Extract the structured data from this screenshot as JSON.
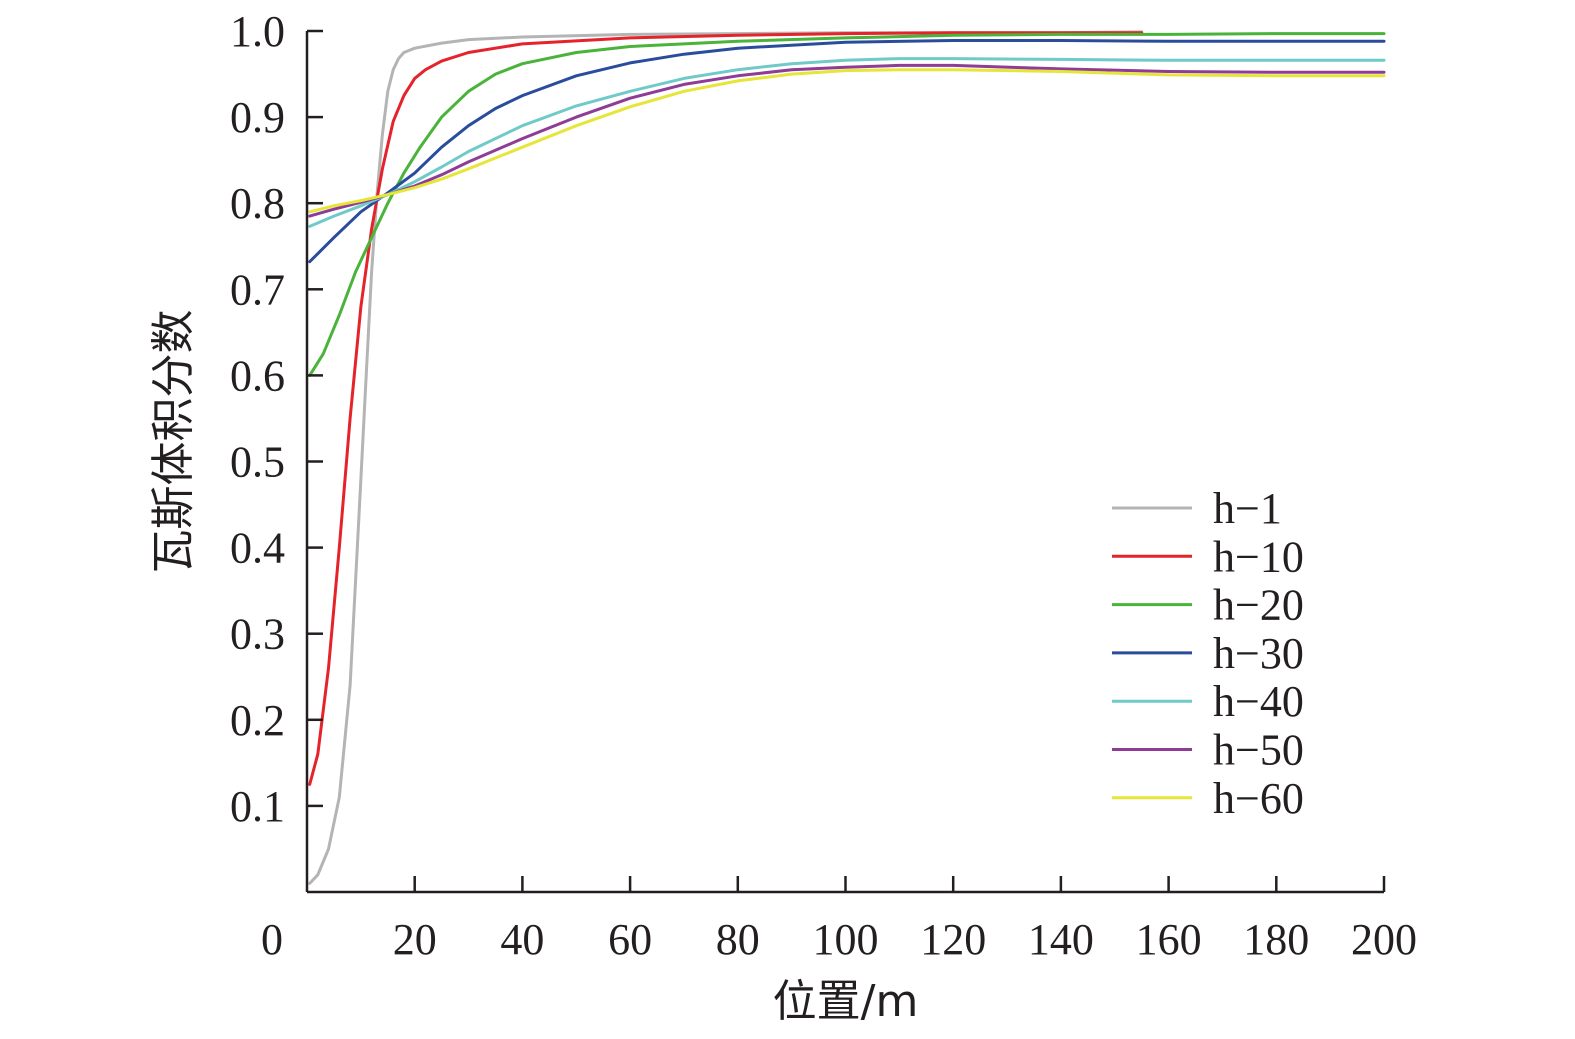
{
  "chart_data": {
    "type": "line",
    "title": "",
    "xlabel": "位置/m",
    "ylabel": "瓦斯体积分数",
    "xlim": [
      0,
      200
    ],
    "ylim": [
      0,
      1.0
    ],
    "x_ticks": [
      0,
      20,
      40,
      60,
      80,
      100,
      120,
      140,
      160,
      180,
      200
    ],
    "x_tick_labels": [
      "0",
      "20",
      "40",
      "60",
      "80",
      "100",
      "120",
      "140",
      "160",
      "180",
      "200"
    ],
    "y_ticks": [
      0.1,
      0.2,
      0.3,
      0.4,
      0.5,
      0.6,
      0.7,
      0.8,
      0.9,
      1.0
    ],
    "y_tick_labels": [
      "0.1",
      "0.2",
      "0.3",
      "0.4",
      "0.5",
      "0.6",
      "0.7",
      "0.8",
      "0.9",
      "1.0"
    ],
    "grid": false,
    "legend_position": "right",
    "series": [
      {
        "name": "h−1",
        "color": "#b4b4b4",
        "points": [
          [
            0.5,
            0.01
          ],
          [
            2,
            0.02
          ],
          [
            4,
            0.05
          ],
          [
            6,
            0.11
          ],
          [
            8,
            0.24
          ],
          [
            10,
            0.48
          ],
          [
            11,
            0.6
          ],
          [
            12,
            0.72
          ],
          [
            13,
            0.81
          ],
          [
            14,
            0.88
          ],
          [
            15,
            0.93
          ],
          [
            16,
            0.955
          ],
          [
            17,
            0.968
          ],
          [
            18,
            0.975
          ],
          [
            20,
            0.98
          ],
          [
            25,
            0.986
          ],
          [
            30,
            0.99
          ],
          [
            40,
            0.993
          ],
          [
            60,
            0.996
          ],
          [
            80,
            0.997
          ],
          [
            100,
            0.998
          ],
          [
            120,
            0.998
          ],
          [
            140,
            0.998
          ],
          [
            155,
            0.999
          ]
        ]
      },
      {
        "name": "h−10",
        "color": "#e4232a",
        "points": [
          [
            0.5,
            0.125
          ],
          [
            2,
            0.16
          ],
          [
            4,
            0.26
          ],
          [
            6,
            0.4
          ],
          [
            8,
            0.55
          ],
          [
            10,
            0.68
          ],
          [
            12,
            0.77
          ],
          [
            14,
            0.84
          ],
          [
            16,
            0.895
          ],
          [
            18,
            0.925
          ],
          [
            20,
            0.945
          ],
          [
            22,
            0.955
          ],
          [
            25,
            0.965
          ],
          [
            30,
            0.975
          ],
          [
            40,
            0.985
          ],
          [
            60,
            0.992
          ],
          [
            80,
            0.995
          ],
          [
            100,
            0.997
          ],
          [
            120,
            0.998
          ],
          [
            140,
            0.998
          ],
          [
            155,
            0.998
          ]
        ]
      },
      {
        "name": "h−20",
        "color": "#4ab33a",
        "points": [
          [
            0.5,
            0.6
          ],
          [
            3,
            0.625
          ],
          [
            6,
            0.67
          ],
          [
            9,
            0.72
          ],
          [
            12,
            0.76
          ],
          [
            15,
            0.8
          ],
          [
            18,
            0.835
          ],
          [
            21,
            0.865
          ],
          [
            25,
            0.9
          ],
          [
            30,
            0.93
          ],
          [
            35,
            0.95
          ],
          [
            40,
            0.962
          ],
          [
            50,
            0.975
          ],
          [
            60,
            0.982
          ],
          [
            80,
            0.988
          ],
          [
            100,
            0.992
          ],
          [
            120,
            0.995
          ],
          [
            140,
            0.996
          ],
          [
            160,
            0.996
          ],
          [
            180,
            0.997
          ],
          [
            200,
            0.997
          ]
        ]
      },
      {
        "name": "h−30",
        "color": "#2a4c9c",
        "points": [
          [
            0.5,
            0.732
          ],
          [
            5,
            0.76
          ],
          [
            10,
            0.79
          ],
          [
            15,
            0.812
          ],
          [
            20,
            0.835
          ],
          [
            25,
            0.865
          ],
          [
            30,
            0.89
          ],
          [
            35,
            0.91
          ],
          [
            40,
            0.925
          ],
          [
            50,
            0.948
          ],
          [
            60,
            0.963
          ],
          [
            70,
            0.973
          ],
          [
            80,
            0.98
          ],
          [
            100,
            0.987
          ],
          [
            120,
            0.989
          ],
          [
            140,
            0.989
          ],
          [
            160,
            0.988
          ],
          [
            180,
            0.988
          ],
          [
            200,
            0.988
          ]
        ]
      },
      {
        "name": "h−40",
        "color": "#6fcac8",
        "points": [
          [
            0.5,
            0.773
          ],
          [
            5,
            0.785
          ],
          [
            10,
            0.797
          ],
          [
            15,
            0.81
          ],
          [
            20,
            0.825
          ],
          [
            25,
            0.842
          ],
          [
            30,
            0.86
          ],
          [
            40,
            0.89
          ],
          [
            50,
            0.913
          ],
          [
            60,
            0.93
          ],
          [
            70,
            0.945
          ],
          [
            80,
            0.955
          ],
          [
            90,
            0.962
          ],
          [
            100,
            0.966
          ],
          [
            110,
            0.968
          ],
          [
            120,
            0.968
          ],
          [
            140,
            0.967
          ],
          [
            160,
            0.966
          ],
          [
            180,
            0.966
          ],
          [
            200,
            0.966
          ]
        ]
      },
      {
        "name": "h−50",
        "color": "#8e3c96",
        "points": [
          [
            0.5,
            0.785
          ],
          [
            5,
            0.793
          ],
          [
            10,
            0.801
          ],
          [
            15,
            0.81
          ],
          [
            20,
            0.82
          ],
          [
            25,
            0.833
          ],
          [
            30,
            0.848
          ],
          [
            40,
            0.875
          ],
          [
            50,
            0.9
          ],
          [
            60,
            0.922
          ],
          [
            70,
            0.938
          ],
          [
            80,
            0.948
          ],
          [
            90,
            0.955
          ],
          [
            100,
            0.958
          ],
          [
            110,
            0.96
          ],
          [
            120,
            0.96
          ],
          [
            140,
            0.956
          ],
          [
            160,
            0.953
          ],
          [
            180,
            0.952
          ],
          [
            200,
            0.952
          ]
        ]
      },
      {
        "name": "h−60",
        "color": "#e6e53a",
        "points": [
          [
            0.5,
            0.79
          ],
          [
            5,
            0.797
          ],
          [
            10,
            0.803
          ],
          [
            15,
            0.81
          ],
          [
            20,
            0.818
          ],
          [
            25,
            0.828
          ],
          [
            30,
            0.84
          ],
          [
            40,
            0.865
          ],
          [
            50,
            0.89
          ],
          [
            60,
            0.912
          ],
          [
            70,
            0.93
          ],
          [
            80,
            0.942
          ],
          [
            90,
            0.95
          ],
          [
            100,
            0.954
          ],
          [
            110,
            0.955
          ],
          [
            120,
            0.955
          ],
          [
            140,
            0.953
          ],
          [
            160,
            0.949
          ],
          [
            180,
            0.948
          ],
          [
            200,
            0.948
          ]
        ]
      }
    ]
  }
}
